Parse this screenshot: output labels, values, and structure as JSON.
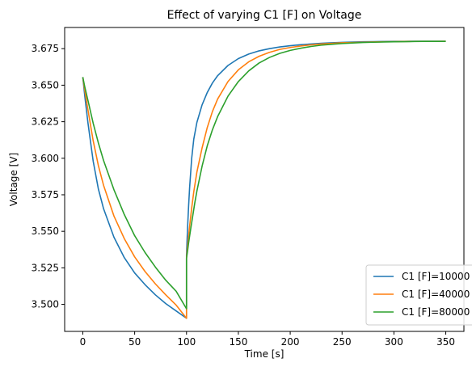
{
  "chart_data": {
    "type": "line",
    "title": "Effect of varying C1 [F] on Voltage",
    "xlabel": "Time [s]",
    "ylabel": "Voltage [V]",
    "xlim": [
      -17.5,
      367.5
    ],
    "ylim": [
      3.4815,
      3.6895
    ],
    "xticks": [
      "0",
      "50",
      "100",
      "150",
      "200",
      "250",
      "300",
      "350"
    ],
    "yticks": [
      "3.500",
      "3.525",
      "3.550",
      "3.575",
      "3.600",
      "3.625",
      "3.650",
      "3.675"
    ],
    "legend_position": "lower right",
    "grid": false,
    "series": [
      {
        "name": "C1 [F]=10000",
        "color": "#1f77b4",
        "x": [
          0,
          2,
          5,
          10,
          15,
          20,
          30,
          40,
          50,
          60,
          70,
          80,
          90,
          100,
          100,
          100.5,
          101,
          102,
          103,
          105,
          107,
          110,
          115,
          120,
          125,
          130,
          140,
          150,
          160,
          170,
          180,
          190,
          200,
          210,
          220,
          230,
          240,
          250,
          260,
          270,
          280,
          290,
          300,
          310,
          320,
          330,
          340,
          350
        ],
        "y": [
          3.6555,
          3.642,
          3.624,
          3.598,
          3.579,
          3.5655,
          3.546,
          3.532,
          3.5215,
          3.5135,
          3.5065,
          3.5005,
          3.4955,
          3.4905,
          3.534,
          3.543,
          3.552,
          3.567,
          3.58,
          3.6,
          3.613,
          3.6245,
          3.6365,
          3.645,
          3.6515,
          3.6565,
          3.6635,
          3.6682,
          3.6713,
          3.6735,
          3.675,
          3.6762,
          3.677,
          3.6777,
          3.6782,
          3.6787,
          3.679,
          3.6793,
          3.6795,
          3.6797,
          3.6798,
          3.6799,
          3.68,
          3.68,
          3.6801,
          3.6801,
          3.6801,
          3.6801
        ]
      },
      {
        "name": "C1 [F]=40000",
        "color": "#ff7f0e",
        "x": [
          0,
          2,
          5,
          10,
          15,
          20,
          30,
          40,
          50,
          60,
          70,
          80,
          90,
          100,
          100,
          101,
          102,
          103,
          105,
          107,
          110,
          115,
          120,
          125,
          130,
          140,
          150,
          160,
          170,
          180,
          190,
          200,
          210,
          220,
          230,
          240,
          250,
          260,
          270,
          280,
          290,
          300,
          310,
          320,
          330,
          340,
          350
        ],
        "y": [
          3.6555,
          3.646,
          3.633,
          3.612,
          3.595,
          3.5815,
          3.5605,
          3.545,
          3.5325,
          3.5225,
          3.514,
          3.5065,
          3.4995,
          3.4905,
          3.532,
          3.5395,
          3.5465,
          3.5535,
          3.566,
          3.577,
          3.5905,
          3.607,
          3.621,
          3.632,
          3.6405,
          3.6525,
          3.6605,
          3.666,
          3.6698,
          3.6725,
          3.6745,
          3.6758,
          3.6768,
          3.6776,
          3.6782,
          3.6786,
          3.679,
          3.6792,
          3.6794,
          3.6796,
          3.6797,
          3.6798,
          3.6799,
          3.68,
          3.68,
          3.68,
          3.6801
        ]
      },
      {
        "name": "C1 [F]=80000",
        "color": "#2ca02c",
        "x": [
          0,
          2,
          5,
          10,
          15,
          20,
          30,
          40,
          50,
          60,
          70,
          80,
          90,
          100,
          100,
          101,
          102,
          104,
          106,
          108,
          110,
          115,
          120,
          125,
          130,
          140,
          150,
          160,
          170,
          180,
          190,
          200,
          210,
          220,
          230,
          240,
          250,
          260,
          270,
          280,
          290,
          300,
          310,
          320,
          330,
          340,
          350
        ],
        "y": [
          3.6555,
          3.6485,
          3.6395,
          3.624,
          3.6105,
          3.5985,
          3.5785,
          3.5615,
          3.547,
          3.5355,
          3.5255,
          3.5165,
          3.509,
          3.497,
          3.5315,
          3.5365,
          3.542,
          3.5515,
          3.5605,
          3.5695,
          3.5775,
          3.5945,
          3.6085,
          3.6195,
          3.6285,
          3.6425,
          3.6525,
          3.6598,
          3.6652,
          3.669,
          3.6718,
          3.6738,
          3.6753,
          3.6765,
          3.6774,
          3.678,
          3.6785,
          3.6789,
          3.6792,
          3.6794,
          3.6796,
          3.6797,
          3.6798,
          3.6799,
          3.68,
          3.68,
          3.68
        ]
      }
    ]
  }
}
